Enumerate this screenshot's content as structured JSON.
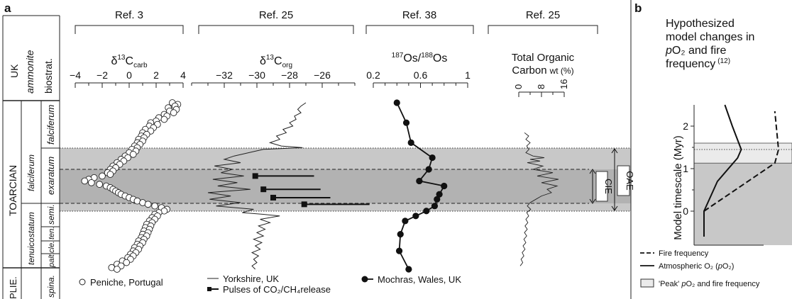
{
  "panel_a_label": "a",
  "panel_b_label": "b",
  "strat": {
    "header": [
      "UK",
      "ammonite",
      "biostrat."
    ],
    "stage_toarcian": "TOARCIAN",
    "stage_plie": "PLIE.",
    "zone_tenuicostatum": "tenuicostatum",
    "zone_falciferum": "falciferum",
    "sub_falciferum": "falciferum",
    "sub_exaratum": "exaratum",
    "sub_semi": "semi.",
    "sub_ten": "ten.",
    "sub_cle": "cle.",
    "sub_palt": "palt.",
    "sub_spina": "spina."
  },
  "panels": {
    "carb": {
      "ref": "Ref. 3",
      "title_main": "δ",
      "title_sup": "13",
      "title_c": "C",
      "title_sub": "carb"
    },
    "org": {
      "ref": "Ref. 25",
      "title_main": "δ",
      "title_sup": "13",
      "title_c": "C",
      "title_sub": "org"
    },
    "os": {
      "ref": "Ref. 38",
      "title_sup1": "187",
      "title_os1": "Os/",
      "title_sup2": "188",
      "title_os2": "Os"
    },
    "toc": {
      "ref": "Ref. 25",
      "title_line1": "Total Organic",
      "title_line2": "Carbon",
      "title_unit": "wt (%)"
    }
  },
  "bands": {
    "cie": "CIE",
    "oae": "OAE"
  },
  "legend_a": {
    "peniche": "Peniche, Portugal",
    "yorkshire": "Yorkshire, UK",
    "pulses": "Pulses of CO₂/CH₄release",
    "mochras": "Mochras, Wales, UK"
  },
  "panel_b": {
    "title_l1": "Hypothesized",
    "title_l2": "model changes in",
    "title_l3_p": "p",
    "title_l3_rest": "O₂ and fire",
    "title_l4": "frequency",
    "title_ref": "(12)",
    "ylabel": "Model timescale (Myr)",
    "legend_fire": "Fire frequency",
    "legend_o2_text": "Atmospheric O₂ (",
    "legend_o2_p": "p",
    "legend_o2_end": "O₂)",
    "legend_peak_q1": "'Peak' ",
    "legend_peak_p": "p",
    "legend_peak_rest": "O₂ and fire frequency"
  },
  "colors": {
    "oae_band": "#c8c8c8",
    "cie_band": "#b0b0b0",
    "peak_band": "#ebebeb",
    "ink": "#1a1a1a",
    "marker_fill": "#ffffff"
  },
  "chart_data": [
    {
      "type": "scatter",
      "title": "δ13Ccarb",
      "source": "Ref. 3",
      "series_name": "Peniche, Portugal",
      "xlim": [
        -4,
        4
      ],
      "xticks": [
        -4,
        -2,
        0,
        2,
        4
      ],
      "note": "values traced along the section",
      "points": [
        [
          3.2,
          0.0
        ],
        [
          3.6,
          0.01
        ],
        [
          3.4,
          0.02
        ],
        [
          2.9,
          0.03
        ],
        [
          3.5,
          0.04
        ],
        [
          3.0,
          0.05
        ],
        [
          3.3,
          0.06
        ],
        [
          2.6,
          0.07
        ],
        [
          2.8,
          0.08
        ],
        [
          2.2,
          0.09
        ],
        [
          2.6,
          0.1
        ],
        [
          2.0,
          0.11
        ],
        [
          1.6,
          0.12
        ],
        [
          2.1,
          0.13
        ],
        [
          1.5,
          0.14
        ],
        [
          1.8,
          0.15
        ],
        [
          1.2,
          0.16
        ],
        [
          1.6,
          0.17
        ],
        [
          1.0,
          0.18
        ],
        [
          1.3,
          0.19
        ],
        [
          0.9,
          0.2
        ],
        [
          1.1,
          0.21
        ],
        [
          0.7,
          0.22
        ],
        [
          1.0,
          0.23
        ],
        [
          0.6,
          0.24
        ],
        [
          0.8,
          0.25
        ],
        [
          0.4,
          0.26
        ],
        [
          0.6,
          0.27
        ],
        [
          0.2,
          0.28
        ],
        [
          0.5,
          0.29
        ],
        [
          0.0,
          0.3
        ],
        [
          0.3,
          0.31
        ],
        [
          -0.3,
          0.32
        ],
        [
          -0.1,
          0.33
        ],
        [
          -0.6,
          0.34
        ],
        [
          -0.4,
          0.35
        ],
        [
          -0.9,
          0.36
        ],
        [
          -0.7,
          0.37
        ],
        [
          -1.2,
          0.38
        ],
        [
          -1.0,
          0.39
        ],
        [
          -1.4,
          0.4
        ],
        [
          -1.2,
          0.41
        ],
        [
          -1.6,
          0.42
        ],
        [
          -1.4,
          0.43
        ],
        [
          -2.0,
          0.44
        ],
        [
          -2.6,
          0.45
        ],
        [
          -3.0,
          0.46
        ],
        [
          -3.3,
          0.47
        ],
        [
          -2.8,
          0.48
        ],
        [
          -2.2,
          0.49
        ],
        [
          -1.7,
          0.5
        ],
        [
          -1.4,
          0.51
        ],
        [
          -1.2,
          0.52
        ],
        [
          -1.0,
          0.53
        ],
        [
          -0.8,
          0.54
        ],
        [
          -0.6,
          0.55
        ],
        [
          -0.3,
          0.56
        ],
        [
          0.0,
          0.57
        ],
        [
          0.3,
          0.58
        ],
        [
          0.6,
          0.59
        ],
        [
          1.0,
          0.6
        ],
        [
          1.4,
          0.61
        ],
        [
          1.9,
          0.62
        ],
        [
          2.4,
          0.63
        ],
        [
          2.8,
          0.64
        ],
        [
          2.6,
          0.65
        ],
        [
          2.2,
          0.66
        ],
        [
          1.9,
          0.67
        ],
        [
          2.1,
          0.68
        ],
        [
          1.7,
          0.69
        ],
        [
          1.9,
          0.7
        ],
        [
          1.5,
          0.71
        ],
        [
          1.7,
          0.72
        ],
        [
          1.3,
          0.73
        ],
        [
          1.6,
          0.74
        ],
        [
          1.2,
          0.75
        ],
        [
          1.5,
          0.76
        ],
        [
          1.1,
          0.77
        ],
        [
          1.4,
          0.78
        ],
        [
          1.0,
          0.79
        ],
        [
          1.3,
          0.8
        ],
        [
          0.9,
          0.81
        ],
        [
          1.1,
          0.82
        ],
        [
          0.7,
          0.83
        ],
        [
          1.0,
          0.84
        ],
        [
          0.6,
          0.85
        ],
        [
          0.8,
          0.86
        ],
        [
          0.4,
          0.87
        ],
        [
          0.7,
          0.88
        ],
        [
          0.3,
          0.89
        ],
        [
          0.5,
          0.9
        ],
        [
          0.1,
          0.91
        ],
        [
          0.3,
          0.92
        ],
        [
          -0.1,
          0.93
        ],
        [
          0.1,
          0.94
        ],
        [
          -0.5,
          0.95
        ],
        [
          -0.2,
          0.96
        ],
        [
          -0.9,
          0.97
        ],
        [
          -0.6,
          0.98
        ],
        [
          -1.3,
          0.99
        ],
        [
          -0.9,
          1.0
        ]
      ]
    },
    {
      "type": "line",
      "title": "δ13Corg",
      "source": "Ref. 25",
      "series": [
        {
          "name": "Yorkshire, UK",
          "points": [
            [
              -27.0,
              0.0
            ],
            [
              -27.3,
              0.02
            ],
            [
              -27.5,
              0.04
            ],
            [
              -27.3,
              0.06
            ],
            [
              -27.7,
              0.08
            ],
            [
              -27.6,
              0.1
            ],
            [
              -28.0,
              0.12
            ],
            [
              -27.8,
              0.14
            ],
            [
              -28.4,
              0.16
            ],
            [
              -28.2,
              0.18
            ],
            [
              -28.8,
              0.2
            ],
            [
              -28.6,
              0.22
            ],
            [
              -29.2,
              0.24
            ],
            [
              -28.5,
              0.26
            ],
            [
              -27.2,
              0.27
            ],
            [
              -29.6,
              0.28
            ],
            [
              -30.5,
              0.3
            ],
            [
              -31.4,
              0.32
            ],
            [
              -32.0,
              0.34
            ],
            [
              -31.0,
              0.36
            ],
            [
              -32.6,
              0.38
            ],
            [
              -31.5,
              0.4
            ],
            [
              -32.2,
              0.42
            ],
            [
              -30.8,
              0.44
            ],
            [
              -32.7,
              0.46
            ],
            [
              -31.2,
              0.48
            ],
            [
              -32.4,
              0.5
            ],
            [
              -30.4,
              0.52
            ],
            [
              -33.0,
              0.54
            ],
            [
              -31.6,
              0.56
            ],
            [
              -32.9,
              0.58
            ],
            [
              -31.0,
              0.6
            ],
            [
              -32.5,
              0.62
            ],
            [
              -30.2,
              0.64
            ],
            [
              -30.9,
              0.66
            ],
            [
              -29.6,
              0.67
            ],
            [
              -28.6,
              0.68
            ],
            [
              -29.8,
              0.7
            ],
            [
              -29.2,
              0.72
            ],
            [
              -29.9,
              0.74
            ],
            [
              -29.5,
              0.76
            ],
            [
              -30.0,
              0.78
            ],
            [
              -29.6,
              0.8
            ],
            [
              -30.2,
              0.82
            ],
            [
              -29.7,
              0.84
            ],
            [
              -30.1,
              0.86
            ],
            [
              -29.8,
              0.88
            ],
            [
              -30.3,
              0.9
            ],
            [
              -29.9,
              0.92
            ],
            [
              -30.2,
              0.94
            ],
            [
              -30.0,
              0.96
            ],
            [
              -30.3,
              0.98
            ],
            [
              -30.1,
              1.0
            ]
          ]
        },
        {
          "name": "Pulses of CO2/CH4release",
          "pulses": [
            {
              "x": -30.1,
              "x_end": -26.5,
              "y": 0.44
            },
            {
              "x": -29.6,
              "x_end": -26.1,
              "y": 0.52
            },
            {
              "x": -29.0,
              "x_end": -25.5,
              "y": 0.57
            },
            {
              "x": -27.1,
              "x_end": -23.1,
              "y": 0.61
            }
          ]
        }
      ],
      "xlim": [
        -34,
        -24
      ],
      "xticks": [
        -32,
        -30,
        -28,
        -26
      ]
    },
    {
      "type": "line",
      "title": "187Os/188Os",
      "source": "Ref. 38",
      "series": [
        {
          "name": "Mochras, Wales, UK",
          "points": [
            [
              0.4,
              0.0
            ],
            [
              0.48,
              0.12
            ],
            [
              0.52,
              0.24
            ],
            [
              0.7,
              0.33
            ],
            [
              0.67,
              0.4
            ],
            [
              0.59,
              0.47
            ],
            [
              0.8,
              0.5
            ],
            [
              0.76,
              0.55
            ],
            [
              0.74,
              0.58
            ],
            [
              0.72,
              0.62
            ],
            [
              0.65,
              0.65
            ],
            [
              0.56,
              0.68
            ],
            [
              0.47,
              0.71
            ],
            [
              0.43,
              0.79
            ],
            [
              0.42,
              0.89
            ],
            [
              0.5,
              1.0
            ]
          ]
        }
      ],
      "xlim": [
        0.2,
        1
      ],
      "xticks": [
        0.2,
        0.6,
        1
      ],
      "xtick_labels": [
        "0.2",
        "0.6",
        "1"
      ]
    },
    {
      "type": "line",
      "title": "Total Organic Carbon wt (%)",
      "source": "Ref. 25",
      "xlim": [
        0,
        16
      ],
      "xticks": [
        0,
        8,
        16
      ],
      "series": [
        {
          "name": "",
          "points": [
            [
              2.0,
              0.18
            ],
            [
              3.5,
              0.2
            ],
            [
              2.5,
              0.22
            ],
            [
              4.0,
              0.24
            ],
            [
              2.8,
              0.26
            ],
            [
              3.6,
              0.28
            ],
            [
              2.5,
              0.3
            ],
            [
              5.0,
              0.32
            ],
            [
              9.0,
              0.33
            ],
            [
              4.0,
              0.34
            ],
            [
              7.5,
              0.35
            ],
            [
              3.0,
              0.36
            ],
            [
              8.5,
              0.38
            ],
            [
              5.0,
              0.4
            ],
            [
              12.0,
              0.42
            ],
            [
              6.5,
              0.44
            ],
            [
              14.0,
              0.46
            ],
            [
              8.0,
              0.48
            ],
            [
              13.5,
              0.5
            ],
            [
              10.0,
              0.52
            ],
            [
              11.5,
              0.54
            ],
            [
              8.0,
              0.56
            ],
            [
              6.0,
              0.58
            ],
            [
              4.0,
              0.6
            ],
            [
              3.0,
              0.62
            ],
            [
              4.2,
              0.64
            ],
            [
              2.8,
              0.66
            ],
            [
              3.5,
              0.68
            ],
            [
              2.5,
              0.7
            ],
            [
              3.2,
              0.72
            ],
            [
              2.2,
              0.74
            ],
            [
              3.0,
              0.76
            ],
            [
              2.0,
              0.78
            ],
            [
              2.8,
              0.8
            ],
            [
              1.8,
              0.82
            ],
            [
              2.5,
              0.84
            ],
            [
              1.5,
              0.86
            ],
            [
              2.2,
              0.88
            ],
            [
              1.2,
              0.9
            ],
            [
              1.8,
              0.92
            ],
            [
              0.8,
              0.94
            ],
            [
              1.4,
              0.96
            ],
            [
              0.5,
              0.98
            ]
          ]
        }
      ]
    },
    {
      "type": "line",
      "title": "Hypothesized model changes in pO2 and fire frequency (12)",
      "ylabel": "Model timescale (Myr)",
      "ylim": [
        -0.8,
        2.5
      ],
      "yticks": [
        0,
        1,
        2
      ],
      "series": [
        {
          "name": "Fire frequency",
          "style": "dashed",
          "points": [
            [
              0.0,
              0.0
            ],
            [
              0.95,
              1.13
            ],
            [
              1.0,
              1.45
            ],
            [
              0.95,
              2.35
            ]
          ]
        },
        {
          "name": "Atmospheric O2 (pO2)",
          "style": "solid",
          "points": [
            [
              0.0,
              -0.6
            ],
            [
              0.0,
              0.0
            ],
            [
              0.18,
              0.7
            ],
            [
              0.45,
              1.25
            ],
            [
              0.5,
              1.45
            ],
            [
              0.38,
              2.0
            ],
            [
              0.28,
              2.5
            ]
          ]
        }
      ],
      "peak_band": [
        1.13,
        1.6
      ]
    }
  ]
}
